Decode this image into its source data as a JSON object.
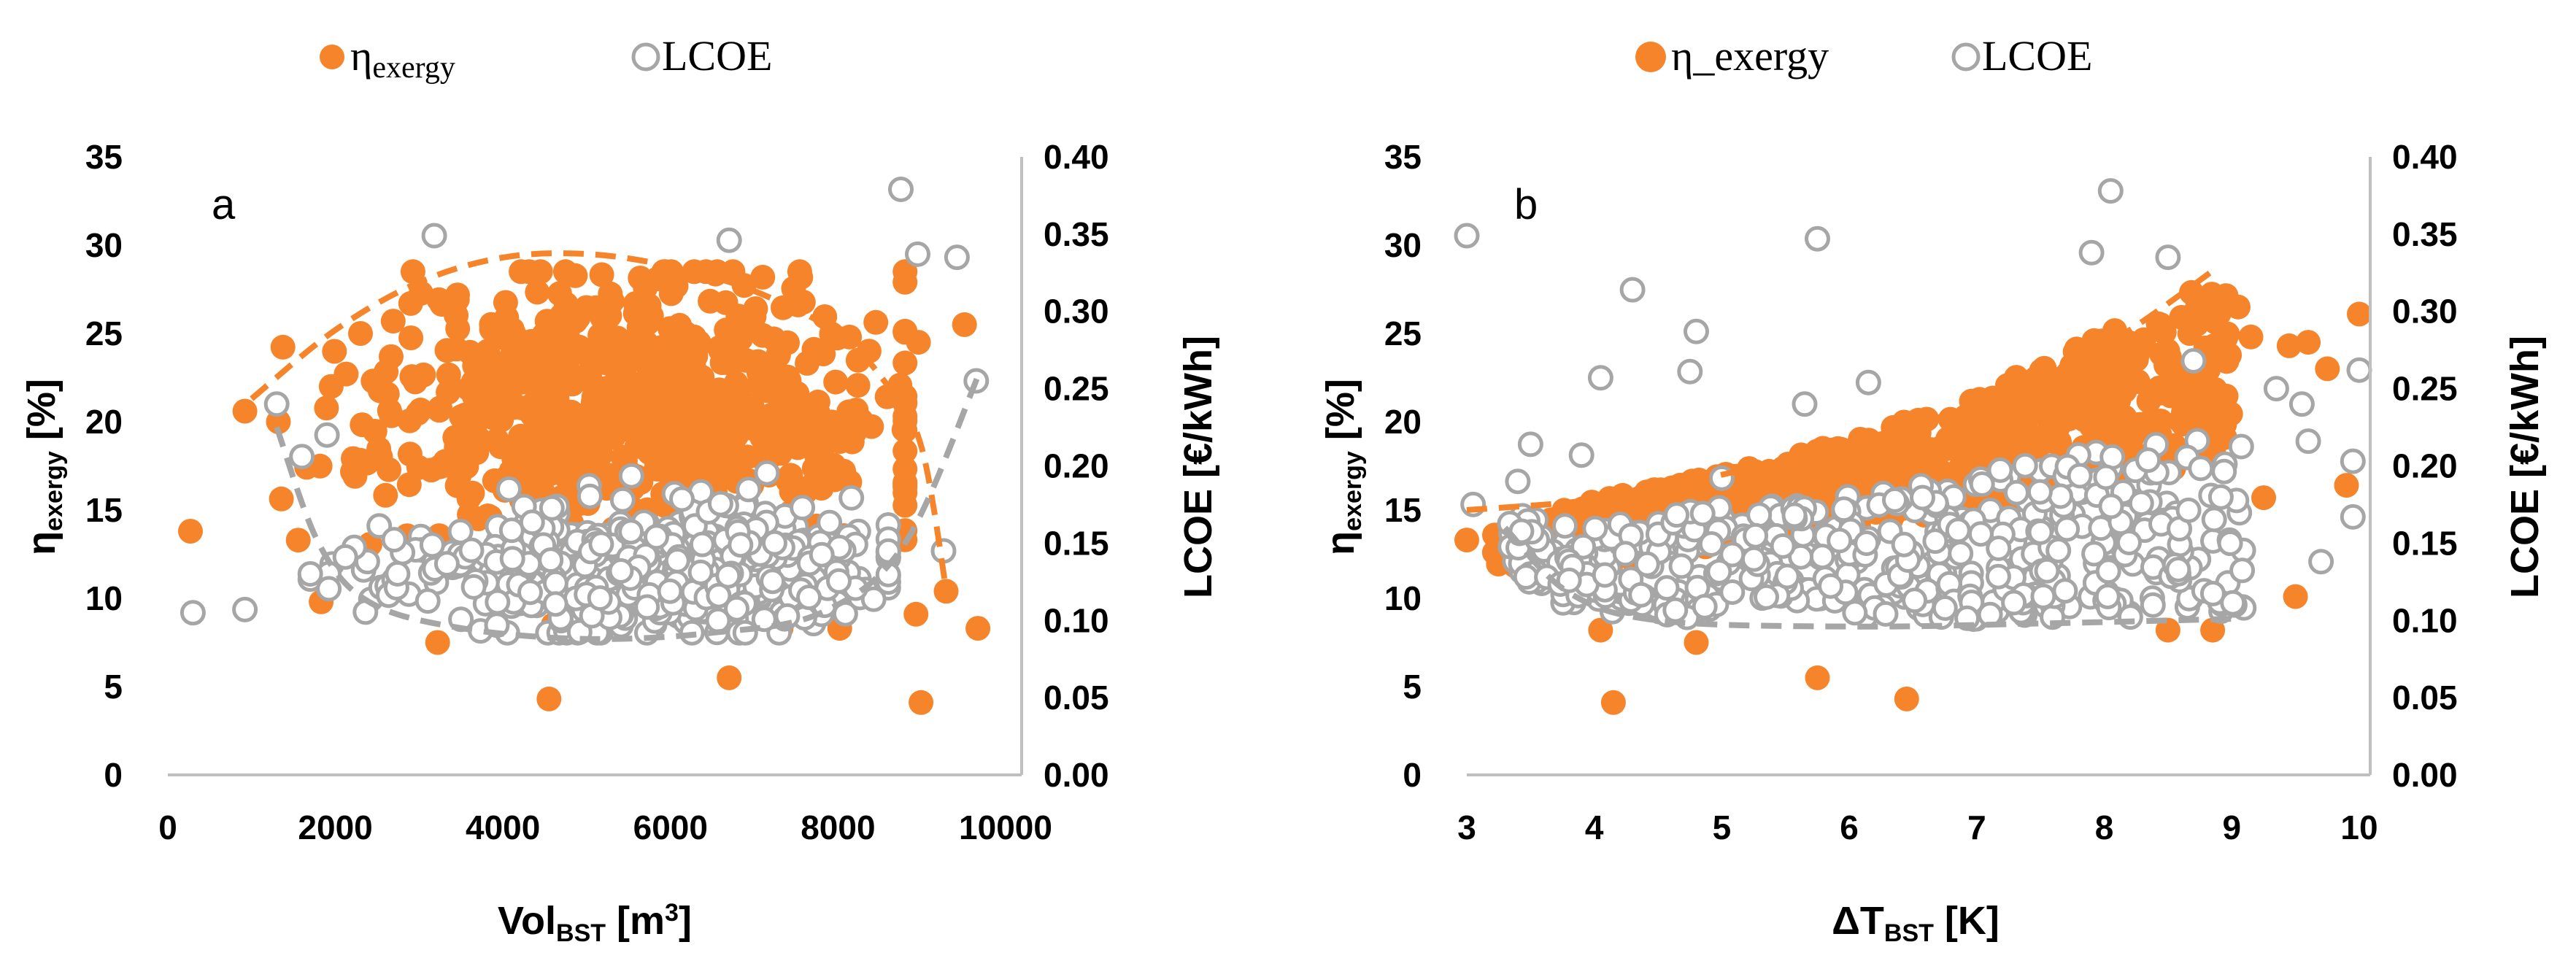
{
  "colors": {
    "orange": "#F5842A",
    "grey": "#A6A6A6",
    "axis": "#BFBFBF",
    "text": "#000000"
  },
  "chart_data": [
    {
      "type": "scatter",
      "panel_letter": "a",
      "legend": [
        {
          "name": "η",
          "sub": "exergy",
          "marker": "filled-circle",
          "color": "#F5842A"
        },
        {
          "name": "LCOE",
          "marker": "open-circle",
          "color": "#A6A6A6"
        }
      ],
      "xlabel": {
        "main": "Vol",
        "sub": "BST",
        "rest": " [m",
        "sup": "3",
        "end": "]"
      },
      "ylabel_left": {
        "main": "η",
        "sub": "exergy",
        "rest": " [%]"
      },
      "ylabel_right": "LCOE [€/kWh]",
      "x_ticks": [
        "0",
        "2000",
        "4000",
        "6000",
        "8000",
        "10000"
      ],
      "y_left_ticks": [
        "0",
        "5",
        "10",
        "15",
        "20",
        "25",
        "30",
        "35"
      ],
      "y_right_ticks": [
        "0.00",
        "0.05",
        "0.10",
        "0.15",
        "0.20",
        "0.25",
        "0.30",
        "0.35",
        "0.40"
      ],
      "xlim": [
        0,
        10000
      ],
      "ylim_left": [
        0,
        35
      ],
      "ylim_right": [
        0,
        0.4
      ],
      "series_exergy_outliers": [
        [
          270,
          13.8
        ],
        [
          1830,
          9.8
        ],
        [
          3220,
          7.5
        ],
        [
          4550,
          4.3
        ],
        [
          6700,
          5.5
        ],
        [
          7320,
          8.3
        ],
        [
          8020,
          8.3
        ],
        [
          8930,
          9.1
        ],
        [
          8990,
          4.1
        ],
        [
          9290,
          10.4
        ],
        [
          9670,
          8.3
        ],
        [
          9510,
          25.5
        ],
        [
          8960,
          24.5
        ],
        [
          920,
          20.6
        ],
        [
          1320,
          20.0
        ],
        [
          1950,
          22.0
        ],
        [
          2300,
          25.0
        ],
        [
          2450,
          22.3
        ]
      ],
      "series_lcoe_outliers": [
        [
          300,
          0.105
        ],
        [
          920,
          0.107
        ],
        [
          3180,
          0.349
        ],
        [
          6700,
          0.346
        ],
        [
          8750,
          0.379
        ],
        [
          8950,
          0.337
        ],
        [
          9420,
          0.335
        ],
        [
          9650,
          0.255
        ],
        [
          9260,
          0.145
        ],
        [
          1300,
          0.24
        ],
        [
          1600,
          0.206
        ],
        [
          1900,
          0.22
        ]
      ],
      "cloud_exergy": {
        "center": [
          5600,
          20.5
        ],
        "spread": [
          1500,
          4.2
        ],
        "count": 700,
        "seed": 11
      },
      "cloud_lcoe": {
        "center": [
          5600,
          0.132
        ],
        "spread": [
          1450,
          0.02
        ],
        "count": 600,
        "seed": 23
      },
      "trend_exergy": [
        [
          1000,
          21.3
        ],
        [
          2000,
          25.2
        ],
        [
          3000,
          27.9
        ],
        [
          4000,
          29.3
        ],
        [
          5000,
          29.5
        ],
        [
          6000,
          28.8
        ],
        [
          7000,
          27.4
        ],
        [
          8000,
          25.0
        ],
        [
          8600,
          22.0
        ],
        [
          9000,
          18.5
        ],
        [
          9300,
          10.2
        ]
      ],
      "trend_lcoe": [
        [
          1300,
          0.225
        ],
        [
          1800,
          0.15
        ],
        [
          2400,
          0.112
        ],
        [
          3500,
          0.095
        ],
        [
          5000,
          0.088
        ],
        [
          6500,
          0.092
        ],
        [
          7800,
          0.105
        ],
        [
          8800,
          0.15
        ],
        [
          9700,
          0.262
        ]
      ]
    },
    {
      "type": "scatter",
      "panel_letter": "b",
      "legend": [
        {
          "name": "η_exergy",
          "marker": "filled-circle",
          "color": "#F5842A"
        },
        {
          "name": "LCOE",
          "marker": "open-circle",
          "color": "#A6A6A6"
        }
      ],
      "xlabel": {
        "main": "ΔT",
        "sub": "BST",
        "rest": " [K]"
      },
      "ylabel_left": {
        "main": "η",
        "sub": "exergy",
        "rest": " [%]"
      },
      "ylabel_right": "LCOE [€/kWh]",
      "x_ticks": [
        "3",
        "4",
        "5",
        "6",
        "7",
        "8",
        "9",
        "10"
      ],
      "y_left_ticks": [
        "0",
        "5",
        "10",
        "15",
        "20",
        "25",
        "30",
        "35"
      ],
      "y_right_ticks": [
        "0.00",
        "0.05",
        "0.10",
        "0.15",
        "0.20",
        "0.25",
        "0.30",
        "0.35",
        "0.40"
      ],
      "xlim": [
        3,
        10
      ],
      "ylim_left": [
        0,
        35
      ],
      "ylim_right": [
        0,
        0.4
      ],
      "series_exergy_outliers": [
        [
          3.0,
          13.3
        ],
        [
          4.15,
          4.1
        ],
        [
          4.05,
          8.2
        ],
        [
          4.8,
          7.5
        ],
        [
          5.75,
          5.5
        ],
        [
          6.45,
          4.3
        ],
        [
          8.5,
          8.2
        ],
        [
          8.85,
          8.2
        ],
        [
          9.25,
          15.7
        ],
        [
          9.5,
          10.1
        ],
        [
          9.45,
          24.3
        ],
        [
          9.6,
          24.5
        ],
        [
          9.75,
          23.0
        ],
        [
          9.9,
          16.4
        ],
        [
          10.0,
          26.1
        ],
        [
          9.15,
          24.8
        ],
        [
          9.05,
          26.5
        ]
      ],
      "series_lcoe_outliers": [
        [
          3.0,
          0.349
        ],
        [
          3.05,
          0.175
        ],
        [
          3.4,
          0.19
        ],
        [
          3.5,
          0.214
        ],
        [
          3.9,
          0.207
        ],
        [
          4.05,
          0.257
        ],
        [
          4.3,
          0.314
        ],
        [
          4.75,
          0.261
        ],
        [
          4.8,
          0.287
        ],
        [
          5.0,
          0.192
        ],
        [
          5.65,
          0.24
        ],
        [
          5.75,
          0.347
        ],
        [
          6.15,
          0.254
        ],
        [
          7.9,
          0.338
        ],
        [
          8.05,
          0.378
        ],
        [
          8.5,
          0.335
        ],
        [
          8.7,
          0.268
        ],
        [
          9.35,
          0.25
        ],
        [
          9.55,
          0.24
        ],
        [
          9.6,
          0.216
        ],
        [
          9.7,
          0.138
        ],
        [
          9.95,
          0.167
        ],
        [
          9.95,
          0.203
        ],
        [
          10.0,
          0.262
        ]
      ],
      "band_exergy": {
        "x_range": [
          3.2,
          9.0
        ],
        "lower": [
          [
            3.2,
            11.5
          ],
          [
            4,
            12.0
          ],
          [
            5,
            13.0
          ],
          [
            6,
            14.0
          ],
          [
            7,
            15.0
          ],
          [
            8,
            16.5
          ],
          [
            9,
            18.0
          ]
        ],
        "upper": [
          [
            3.2,
            14.0
          ],
          [
            4,
            15.5
          ],
          [
            5,
            17.0
          ],
          [
            6,
            19.0
          ],
          [
            7,
            21.5
          ],
          [
            8,
            25.0
          ],
          [
            9,
            28.5
          ]
        ],
        "count": 800,
        "seed": 37
      },
      "band_lcoe": {
        "x_range": [
          3.3,
          9.1
        ],
        "lower": [
          [
            3.3,
            0.12
          ],
          [
            4,
            0.105
          ],
          [
            5,
            0.1
          ],
          [
            6,
            0.1
          ],
          [
            7,
            0.1
          ],
          [
            8,
            0.1
          ],
          [
            9,
            0.105
          ]
        ],
        "upper": [
          [
            3.3,
            0.17
          ],
          [
            4,
            0.16
          ],
          [
            5,
            0.175
          ],
          [
            6,
            0.18
          ],
          [
            7,
            0.195
          ],
          [
            8,
            0.215
          ],
          [
            9,
            0.22
          ]
        ],
        "count": 520,
        "seed": 53
      },
      "trend_exergy": [
        [
          3.0,
          15.0
        ],
        [
          4.0,
          15.6
        ],
        [
          5.0,
          17.0
        ],
        [
          6.0,
          18.8
        ],
        [
          7.0,
          21.0
        ],
        [
          8.0,
          24.3
        ],
        [
          8.9,
          28.8
        ]
      ],
      "trend_lcoe": [
        [
          3.3,
          0.16
        ],
        [
          3.8,
          0.118
        ],
        [
          4.5,
          0.1
        ],
        [
          6.0,
          0.096
        ],
        [
          7.5,
          0.098
        ],
        [
          9.0,
          0.101
        ]
      ]
    }
  ]
}
